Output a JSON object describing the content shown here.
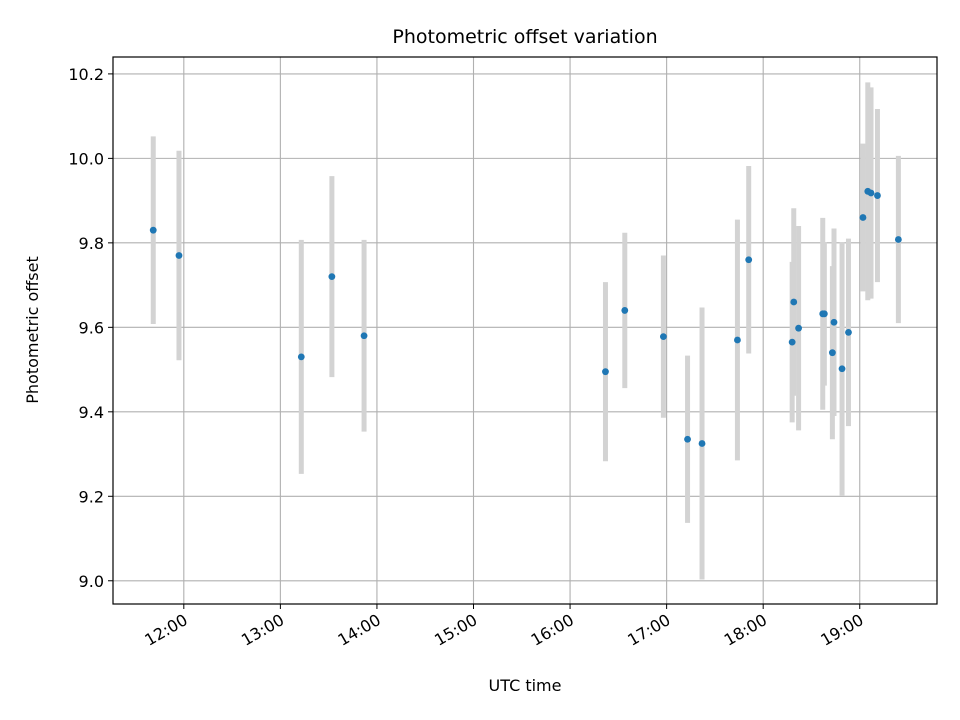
{
  "chart_data": {
    "type": "scatter",
    "title": "Photometric offset variation",
    "xlabel": "UTC time",
    "ylabel": "Photometric offset",
    "x_tick_labels": [
      "12:00",
      "13:00",
      "14:00",
      "15:00",
      "16:00",
      "17:00",
      "18:00",
      "19:00"
    ],
    "x_ticks_hours": [
      12,
      13,
      14,
      15,
      16,
      17,
      18,
      19
    ],
    "y_ticks": [
      9.0,
      9.2,
      9.4,
      9.6,
      9.8,
      10.0,
      10.2
    ],
    "y_tick_labels": [
      "9.0",
      "9.2",
      "9.4",
      "9.6",
      "9.8",
      "10.0",
      "10.2"
    ],
    "xlim": [
      "11:16",
      "19:48"
    ],
    "ylim": [
      8.945,
      10.24
    ],
    "grid": true,
    "colors": {
      "point": "#1f77b4",
      "errorbar": "#d3d3d3",
      "grid": "#b0b0b0"
    },
    "series": [
      {
        "points": [
          {
            "x": "11:41",
            "y": 9.83,
            "err": 0.222
          },
          {
            "x": "11:57",
            "y": 9.77,
            "err": 0.248
          },
          {
            "x": "13:13",
            "y": 9.53,
            "err": 0.277
          },
          {
            "x": "13:32",
            "y": 9.72,
            "err": 0.238
          },
          {
            "x": "13:52",
            "y": 9.58,
            "err": 0.227
          },
          {
            "x": "16:22",
            "y": 9.495,
            "err": 0.212
          },
          {
            "x": "16:34",
            "y": 9.64,
            "err": 0.184
          },
          {
            "x": "16:58",
            "y": 9.578,
            "err": 0.192
          },
          {
            "x": "17:13",
            "y": 9.335,
            "err": 0.198
          },
          {
            "x": "17:22",
            "y": 9.325,
            "err": 0.322
          },
          {
            "x": "17:44",
            "y": 9.57,
            "err": 0.285
          },
          {
            "x": "17:51",
            "y": 9.76,
            "err": 0.222
          },
          {
            "x": "18:18",
            "y": 9.565,
            "err": 0.19
          },
          {
            "x": "18:19",
            "y": 9.66,
            "err": 0.222
          },
          {
            "x": "18:22",
            "y": 9.598,
            "err": 0.242
          },
          {
            "x": "18:37",
            "y": 9.632,
            "err": 0.227
          },
          {
            "x": "18:38",
            "y": 9.632,
            "err": 0.17
          },
          {
            "x": "18:43",
            "y": 9.54,
            "err": 0.205
          },
          {
            "x": "18:44",
            "y": 9.612,
            "err": 0.222
          },
          {
            "x": "18:49",
            "y": 9.502,
            "err": 0.3
          },
          {
            "x": "18:53",
            "y": 9.588,
            "err": 0.222
          },
          {
            "x": "19:02",
            "y": 9.86,
            "err": 0.175
          },
          {
            "x": "19:05",
            "y": 9.922,
            "err": 0.258
          },
          {
            "x": "19:07",
            "y": 9.918,
            "err": 0.25
          },
          {
            "x": "19:11",
            "y": 9.912,
            "err": 0.205
          },
          {
            "x": "19:24",
            "y": 9.808,
            "err": 0.198
          }
        ]
      }
    ]
  }
}
